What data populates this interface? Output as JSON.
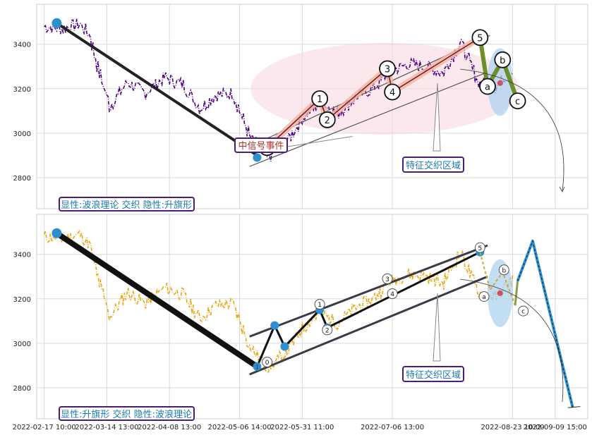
{
  "chart_data": [
    {
      "type": "line",
      "ylim": [
        2660,
        3580
      ],
      "yticks": [
        2800,
        3000,
        3200,
        3400
      ],
      "grid": true,
      "price_color": "#4b0082",
      "price_x": [
        "2022-02-17",
        "2022-02-24",
        "2022-03-03",
        "2022-03-07",
        "2022-03-10",
        "2022-03-15",
        "2022-03-22",
        "2022-03-29",
        "2022-04-06",
        "2022-04-13",
        "2022-04-20",
        "2022-04-26",
        "2022-05-03",
        "2022-05-10",
        "2022-05-17",
        "2022-05-24",
        "2022-05-31",
        "2022-06-07",
        "2022-06-14",
        "2022-06-21",
        "2022-06-28",
        "2022-07-05",
        "2022-07-12",
        "2022-07-19",
        "2022-07-26",
        "2022-08-02",
        "2022-08-09",
        "2022-08-16",
        "2022-08-23"
      ],
      "price_y": [
        3480,
        3470,
        3490,
        3440,
        3300,
        3120,
        3230,
        3180,
        3250,
        3220,
        3110,
        3170,
        3180,
        2980,
        2890,
        2950,
        3070,
        3140,
        3090,
        3160,
        3200,
        3280,
        3310,
        3300,
        3270,
        3410,
        3230,
        3210,
        3290
      ],
      "wave_points": [
        {
          "label": "0",
          "x": "2022-05-17",
          "y": 2935
        },
        {
          "label": "1",
          "x": "2022-06-07",
          "y": 3155
        },
        {
          "label": "2",
          "x": "2022-06-10",
          "y": 3060
        },
        {
          "label": "3",
          "x": "2022-07-04",
          "y": 3290
        },
        {
          "label": "4",
          "x": "2022-07-06",
          "y": 3185
        },
        {
          "label": "5",
          "x": "2022-08-10",
          "y": 3430
        },
        {
          "label": "a",
          "x": "2022-08-13",
          "y": 3210
        },
        {
          "label": "b",
          "x": "2022-08-19",
          "y": 3330
        },
        {
          "label": "c",
          "x": "2022-08-25",
          "y": 3145
        }
      ],
      "box_label": "中信号事件",
      "region_label": "特征交织区域",
      "legend_text": "显性:波浪理论 交织 隐性:升旗形"
    },
    {
      "type": "line",
      "ylim": [
        2660,
        3580
      ],
      "yticks": [
        2800,
        3000,
        3200,
        3400
      ],
      "grid": true,
      "price_color": "#e6a817",
      "flag_points": [
        {
          "x": "2022-02-22",
          "y": 3495
        },
        {
          "x": "2022-05-13",
          "y": 2895
        },
        {
          "x": "2022-05-20",
          "y": 3080
        },
        {
          "x": "2022-05-24",
          "y": 2985
        },
        {
          "x": "2022-06-07",
          "y": 3150
        },
        {
          "x": "2022-06-10",
          "y": 3070
        },
        {
          "x": "2022-08-10",
          "y": 3410
        }
      ],
      "projection": [
        {
          "x": "2022-08-25",
          "y": 3280
        },
        {
          "x": "2022-08-31",
          "y": 3460
        },
        {
          "x": "2022-09-16",
          "y": 2710
        }
      ],
      "wave_labels": [
        "0",
        "1",
        "2",
        "3",
        "4",
        "5",
        "a",
        "b",
        "c"
      ],
      "region_label": "特征交织区域",
      "legend_text": "显性:升旗形 交织 隐性:波浪理论"
    }
  ],
  "x_ticks": [
    "2022-02-17 10:00",
    "2022-03-14 13:00",
    "2022-04-08 13:00",
    "2022-05-06 14:00",
    "2022-05-31 11:00",
    "2022-07-06 13:00",
    "2022-08-23 10:00",
    "2022-09-09 15:00"
  ],
  "x_tick_values": [
    "2022-02-17",
    "2022-03-14",
    "2022-04-08",
    "2022-05-06",
    "2022-05-31",
    "2022-07-06",
    "2022-08-23",
    "2022-09-09"
  ],
  "x_range": [
    "2022-02-14",
    "2022-09-22"
  ],
  "colors": {
    "wave_fill": "#f4b6a6",
    "flag_line": "#3a3a48",
    "projection": "#2d8fd0",
    "box_border": "#4b1d7a",
    "box_text_top": "#b03030",
    "box_text": "#1a7bb0",
    "trend": "#222222",
    "oval_top": "#f7d6dc",
    "oval_ab": "#aed3ef"
  }
}
